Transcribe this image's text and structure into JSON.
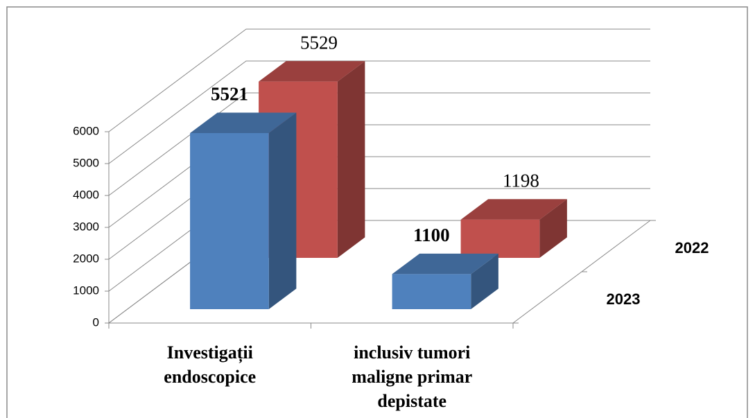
{
  "chart_data": {
    "type": "bar3d",
    "categories": [
      "Investigații endoscopice",
      "inclusiv tumori maligne primar depistate"
    ],
    "series": [
      {
        "name": "2023",
        "color": "#4f81bd",
        "values": [
          5521,
          1100
        ]
      },
      {
        "name": "2022",
        "color": "#c0504d",
        "values": [
          5529,
          1198
        ]
      }
    ],
    "ylim": [
      0,
      6000
    ],
    "yticks": [
      0,
      1000,
      2000,
      3000,
      4000,
      5000,
      6000
    ],
    "grid": true
  }
}
